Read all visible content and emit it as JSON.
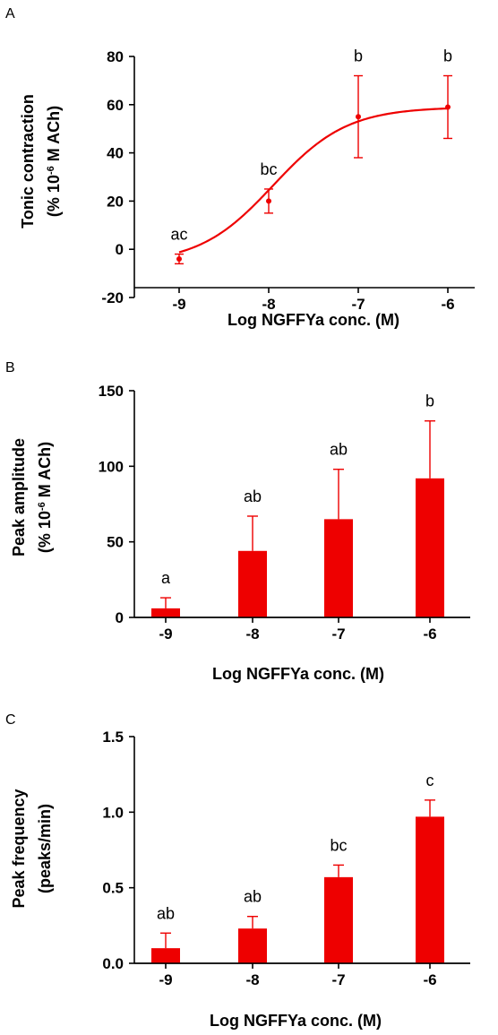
{
  "figure": {
    "accent_color": "#ee0000",
    "panels": [
      "A",
      "B",
      "C"
    ]
  },
  "chart_data": [
    {
      "panel": "A",
      "type": "line",
      "fit": "sigmoid dose-response",
      "title": "",
      "xlabel": "Log NGFFYa conc. (M)",
      "ylabel_line1": "Tonic contraction",
      "ylabel_line2_prefix": "(% 10",
      "ylabel_line2_exp": "-6",
      "ylabel_line2_suffix": " M ACh)",
      "x": [
        -9,
        -8,
        -7,
        -6
      ],
      "x_tick_labels": [
        "-9",
        "-8",
        "-7",
        "-6"
      ],
      "xlim": [
        -9.5,
        -5.7
      ],
      "ylim": [
        -20,
        80
      ],
      "y_ticks": [
        -20,
        0,
        20,
        40,
        60,
        80
      ],
      "y_tick_labels": [
        "-20",
        "0",
        "20",
        "40",
        "60",
        "80"
      ],
      "series": [
        {
          "values": [
            -4,
            20,
            55,
            59
          ],
          "error": [
            2,
            5,
            17,
            13
          ],
          "color": "#ee0000"
        }
      ],
      "curve": {
        "bottom": -6,
        "top": 59,
        "log_ec50": -7.95,
        "hill": 1.05
      },
      "annotations": [
        "ac",
        "bc",
        "b",
        "b"
      ]
    },
    {
      "panel": "B",
      "type": "bar",
      "title": "",
      "xlabel": "Log NGFFYa conc. (M)",
      "ylabel_line1": "Peak amplitude",
      "ylabel_line2_prefix": "(% 10",
      "ylabel_line2_exp": "-6",
      "ylabel_line2_suffix": " M ACh)",
      "categories": [
        "-9",
        "-8",
        "-7",
        "-6"
      ],
      "ylim": [
        0,
        150
      ],
      "y_ticks": [
        0,
        50,
        100,
        150
      ],
      "y_tick_labels": [
        "0",
        "50",
        "100",
        "150"
      ],
      "series": [
        {
          "values": [
            6,
            44,
            65,
            92
          ],
          "error": [
            7,
            23,
            33,
            38
          ],
          "color": "#ee0000"
        }
      ],
      "annotations": [
        "a",
        "ab",
        "ab",
        "b"
      ]
    },
    {
      "panel": "C",
      "type": "bar",
      "title": "",
      "xlabel": "Log NGFFYa conc. (M)",
      "ylabel_line1": "Peak frequency",
      "ylabel_line2_prefix": "(peaks/min)",
      "ylabel_line2_exp": "",
      "ylabel_line2_suffix": "",
      "categories": [
        "-9",
        "-8",
        "-7",
        "-6"
      ],
      "ylim": [
        0,
        1.5
      ],
      "y_ticks": [
        0,
        0.5,
        1.0,
        1.5
      ],
      "y_tick_labels": [
        "0.0",
        "0.5",
        "1.0",
        "1.5"
      ],
      "series": [
        {
          "values": [
            0.1,
            0.23,
            0.57,
            0.97
          ],
          "error": [
            0.1,
            0.08,
            0.08,
            0.11
          ],
          "color": "#ee0000"
        }
      ],
      "annotations": [
        "ab",
        "ab",
        "bc",
        "c"
      ]
    }
  ]
}
